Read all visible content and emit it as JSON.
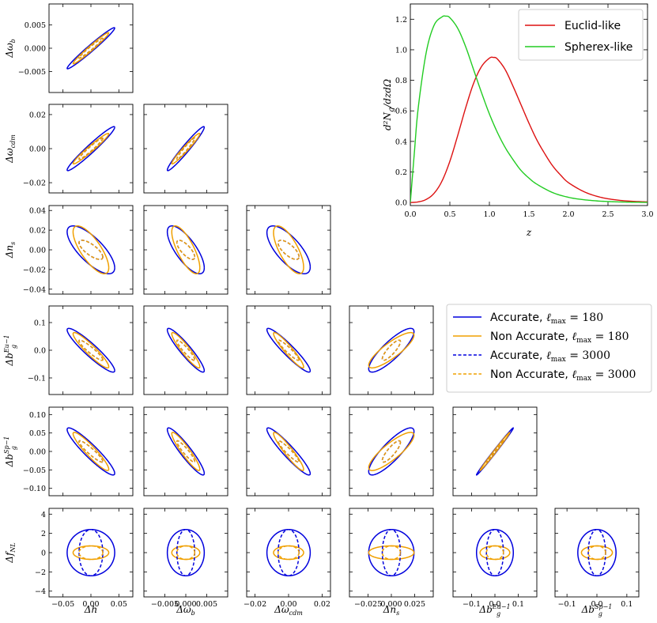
{
  "colors": {
    "accurate": "#0000dd",
    "non_accurate": "#f0a000",
    "euclid": "#dd1111",
    "spherex": "#22cc22"
  },
  "chart_data": [
    {
      "type": "corner-ellipses",
      "params": [
        "Δh",
        "Δω_b",
        "Δω_cdm",
        "Δn_s",
        "Δb_g^{Eu-1}",
        "Δb_g^{Sp-1}",
        "Δf_NL"
      ],
      "axis_labels_x": [
        "Δh",
        "Δω_b",
        "Δω_cdm",
        "Δn_s",
        "Δb_g^Eu−1",
        "Δb_g^Sp−1"
      ],
      "axis_labels_y": [
        "Δω_b",
        "Δω_cdm",
        "Δn_s",
        "Δb_g^Eu−1",
        "Δb_g^Sp−1",
        "Δf_NL"
      ],
      "xlim": [
        [
          -0.075,
          0.075
        ],
        [
          -0.01,
          0.01
        ],
        [
          -0.025,
          0.025
        ],
        [
          -0.045,
          0.045
        ],
        [
          -0.18,
          0.18
        ],
        [
          -0.14,
          0.14
        ]
      ],
      "ylim": [
        [
          -0.0095,
          0.0095
        ],
        [
          -0.026,
          0.026
        ],
        [
          -0.045,
          0.045
        ],
        [
          -0.16,
          0.16
        ],
        [
          -0.12,
          0.12
        ],
        [
          -4.6,
          4.6
        ]
      ],
      "xticks": [
        [
          -0.05,
          0.0,
          0.05
        ],
        [
          -0.005,
          0.0,
          0.005
        ],
        [
          -0.02,
          0.0,
          0.02
        ],
        [
          -0.025,
          0.0,
          0.025
        ],
        [
          -0.1,
          0.0,
          0.1
        ],
        [
          -0.1,
          0.0,
          0.1
        ]
      ],
      "xtick_labels": [
        [
          "−0.05",
          "0.00",
          "0.05"
        ],
        [
          "−0.005",
          "0.000",
          "0.005"
        ],
        [
          "−0.02",
          "0.00",
          "0.02"
        ],
        [
          "−0.025",
          "0.000",
          "0.025"
        ],
        [
          "−0.1",
          "0.0",
          "0.1"
        ],
        [
          "−0.1",
          "0.0",
          "0.1"
        ]
      ],
      "yticks": [
        [
          -0.005,
          0.0,
          0.005
        ],
        [
          -0.02,
          0.0,
          0.02
        ],
        [
          -0.04,
          -0.02,
          0.0,
          0.02,
          0.04
        ],
        [
          -0.1,
          0.0,
          0.1
        ],
        [
          -0.1,
          -0.05,
          0.0,
          0.05,
          0.1
        ],
        [
          -4,
          -2,
          0,
          2,
          4
        ]
      ],
      "ytick_labels": [
        [
          "−0.005",
          "0.000",
          "0.005"
        ],
        [
          "−0.02",
          "0.00",
          "0.02"
        ],
        [
          "−0.04",
          "−0.02",
          "0.00",
          "0.02",
          "0.04"
        ],
        [
          "−0.1",
          "0.0",
          "0.1"
        ],
        [
          "−0.10",
          "−0.05",
          "0.00",
          "0.05",
          "0.10"
        ],
        [
          "−4",
          "−2",
          "0",
          "2",
          "4"
        ]
      ],
      "sigma": {
        "accurate_lmax_180": [
          0.028,
          0.0029,
          0.0085,
          0.016,
          0.052,
          0.042,
          1.58
        ],
        "non_accurate_lmax_180": [
          0.021,
          0.0022,
          0.0059,
          0.016,
          0.042,
          0.034,
          0.46
        ],
        "accurate_lmax_3000": [
          0.014,
          0.0014,
          0.0041,
          0.0064,
          0.024,
          0.019,
          1.58
        ],
        "non_accurate_lmax_3000": [
          0.014,
          0.0014,
          0.0041,
          0.0064,
          0.024,
          0.019,
          0.46
        ]
      },
      "correlation": [
        [
          1.0,
          0.98,
          0.97,
          -0.75,
          -0.93,
          -0.93,
          0.0
        ],
        [
          0.98,
          1.0,
          0.97,
          -0.75,
          -0.93,
          -0.93,
          0.0
        ],
        [
          0.97,
          0.97,
          1.0,
          -0.72,
          -0.94,
          -0.94,
          0.0
        ],
        [
          -0.75,
          -0.75,
          -0.72,
          1.0,
          0.85,
          0.85,
          0.0
        ],
        [
          -0.93,
          -0.93,
          -0.94,
          0.85,
          1.0,
          0.995,
          0.0
        ],
        [
          -0.93,
          -0.93,
          -0.94,
          0.85,
          0.995,
          1.0,
          0.0
        ],
        [
          0.0,
          0.0,
          0.0,
          0.0,
          0.0,
          0.0,
          1.0
        ]
      ],
      "legend": [
        {
          "key": "accurate_lmax_180",
          "label": "Accurate, ",
          "ell": "180",
          "color": "#0000dd",
          "dash": "solid"
        },
        {
          "key": "non_accurate_lmax_180",
          "label": "Non Accurate, ",
          "ell": "180",
          "color": "#f0a000",
          "dash": "solid"
        },
        {
          "key": "accurate_lmax_3000",
          "label": "Accurate, ",
          "ell": "3000",
          "color": "#0000dd",
          "dash": "dashed"
        },
        {
          "key": "non_accurate_lmax_3000",
          "label": "Non Accurate, ",
          "ell": "3000",
          "color": "#f0a000",
          "dash": "dashed"
        }
      ],
      "legend_ell_prefix": "ℓ",
      "legend_ell_sub": "max",
      "legend_eq": " = ",
      "legend_placement": "right of lower triangle"
    },
    {
      "type": "line",
      "xlabel": "z",
      "ylabel": "d²N_g/dzdΩ",
      "xlim": [
        0.0,
        3.0
      ],
      "ylim": [
        -0.02,
        1.3
      ],
      "xticks": [
        0.0,
        0.5,
        1.0,
        1.5,
        2.0,
        2.5,
        3.0
      ],
      "xtick_labels": [
        "0.0",
        "0.5",
        "1.0",
        "1.5",
        "2.0",
        "2.5",
        "3.0"
      ],
      "yticks": [
        0.0,
        0.2,
        0.4,
        0.6,
        0.8,
        1.0,
        1.2
      ],
      "ytick_labels": [
        "0.0",
        "0.2",
        "0.4",
        "0.6",
        "0.8",
        "1.0",
        "1.2"
      ],
      "legend_placement": "top-right",
      "series": [
        {
          "name": "Euclid-like",
          "color": "#dd1111",
          "x": [
            0.0,
            0.1,
            0.2,
            0.3,
            0.4,
            0.5,
            0.6,
            0.7,
            0.8,
            0.9,
            1.0,
            1.05,
            1.1,
            1.2,
            1.3,
            1.4,
            1.5,
            1.6,
            1.7,
            1.8,
            1.9,
            2.0,
            2.2,
            2.4,
            2.6,
            2.8,
            3.0
          ],
          "y": [
            0.0,
            0.004,
            0.02,
            0.06,
            0.14,
            0.27,
            0.44,
            0.62,
            0.78,
            0.89,
            0.945,
            0.95,
            0.94,
            0.87,
            0.76,
            0.64,
            0.52,
            0.41,
            0.32,
            0.24,
            0.18,
            0.13,
            0.07,
            0.035,
            0.017,
            0.008,
            0.004
          ]
        },
        {
          "name": "Spherex-like",
          "color": "#22cc22",
          "x": [
            0.0,
            0.05,
            0.1,
            0.2,
            0.3,
            0.4,
            0.45,
            0.5,
            0.6,
            0.7,
            0.8,
            0.9,
            1.0,
            1.1,
            1.2,
            1.3,
            1.4,
            1.5,
            1.6,
            1.8,
            2.0,
            2.2,
            2.4,
            2.6,
            2.8,
            3.0
          ],
          "y": [
            0.0,
            0.32,
            0.62,
            0.98,
            1.16,
            1.215,
            1.22,
            1.21,
            1.14,
            1.02,
            0.87,
            0.72,
            0.58,
            0.46,
            0.36,
            0.28,
            0.21,
            0.16,
            0.12,
            0.065,
            0.034,
            0.018,
            0.009,
            0.0045,
            0.002,
            0.001
          ]
        }
      ]
    }
  ]
}
